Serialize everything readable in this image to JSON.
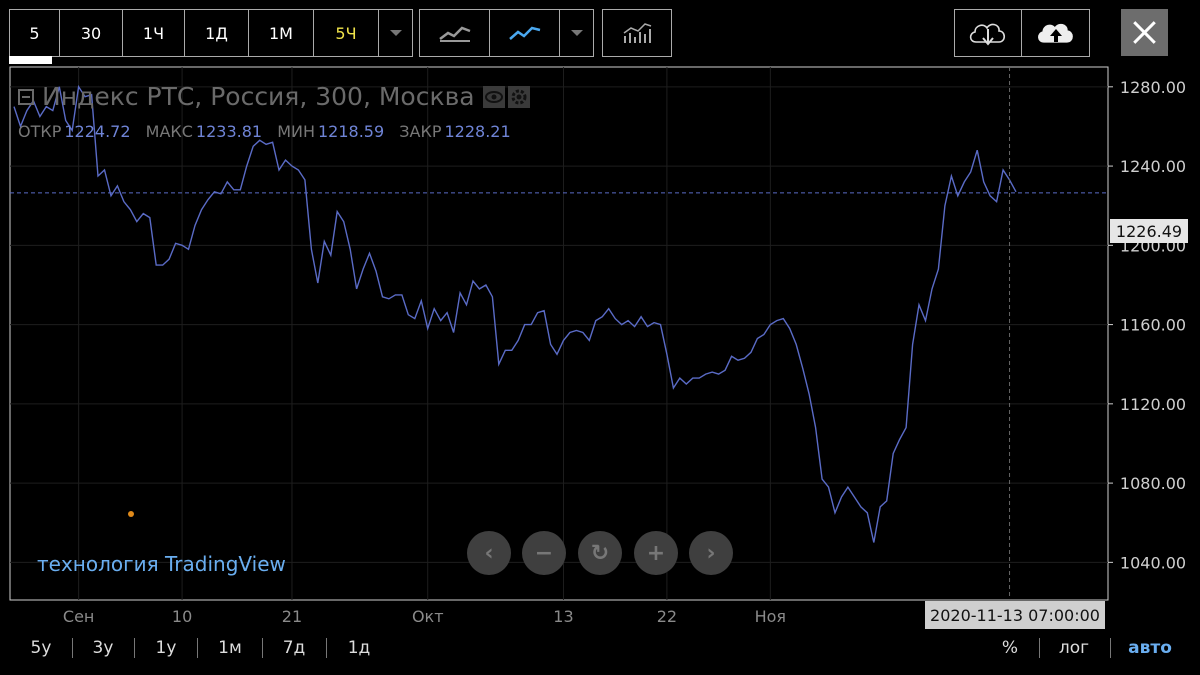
{
  "toolbar": {
    "intervals": [
      "5",
      "30",
      "1Ч",
      "1Д",
      "1М",
      "5Ч"
    ],
    "active_interval": "5Ч"
  },
  "legend": {
    "title": "Индекс РТС, Россия, 300, Москва",
    "ohlc": [
      {
        "key": "ОТКР",
        "value": "1224.72"
      },
      {
        "key": "МАКС",
        "value": "1233.81"
      },
      {
        "key": "МИН",
        "value": "1218.59"
      },
      {
        "key": "ЗАКР",
        "value": "1228.21"
      }
    ]
  },
  "watermark": "технология TradingView",
  "crosshair": {
    "date_label": "2020-11-13 07:00:00",
    "price_label": "1226.49",
    "price": 1226.49
  },
  "ranges": [
    "5y",
    "3y",
    "1y",
    "1м",
    "7д",
    "1д"
  ],
  "scale_options": [
    "%",
    "лог",
    "авто"
  ],
  "colors": {
    "line": "#5a6bc6",
    "background": "#000000",
    "grid": "#1e1e1e",
    "active": "#f0e34a",
    "auto": "#6aaef0"
  },
  "chart_data": {
    "type": "line",
    "x_tick_labels": [
      "Сен",
      "10",
      "21",
      "Окт",
      "13",
      "22",
      "Ноя"
    ],
    "y_tick_labels": [
      "1280.00",
      "1240.00",
      "1200.00",
      "1160.00",
      "1120.00",
      "1080.00",
      "1040.00"
    ],
    "y_ticks": [
      1280,
      1240,
      1200,
      1160,
      1120,
      1080,
      1040
    ],
    "ylim": [
      1021,
      1290
    ],
    "series": [
      {
        "values": [
          1270,
          1260,
          1268,
          1273,
          1265,
          1270,
          1268,
          1280,
          1263,
          1258,
          1280,
          1275,
          1276,
          1235,
          1238,
          1225,
          1230,
          1222,
          1218,
          1212,
          1216,
          1214,
          1190,
          1190,
          1193,
          1201,
          1200,
          1198,
          1210,
          1218,
          1223,
          1227,
          1226,
          1232,
          1228,
          1228,
          1240,
          1250,
          1253,
          1251,
          1252,
          1238,
          1243,
          1240,
          1238,
          1233,
          1198,
          1181,
          1202,
          1195,
          1217,
          1212,
          1198,
          1178,
          1188,
          1196,
          1187,
          1174,
          1173,
          1175,
          1175,
          1165,
          1163,
          1172,
          1158,
          1168,
          1162,
          1166,
          1156,
          1176,
          1170,
          1182,
          1178,
          1180,
          1174,
          1140,
          1147,
          1147,
          1152,
          1160,
          1160,
          1166,
          1167,
          1150,
          1145,
          1152,
          1156,
          1157,
          1156,
          1152,
          1162,
          1164,
          1168,
          1163,
          1160,
          1162,
          1159,
          1164,
          1159,
          1161,
          1160,
          1145,
          1128,
          1133,
          1130,
          1133,
          1133,
          1135,
          1136,
          1135,
          1137,
          1144,
          1142,
          1143,
          1146,
          1153,
          1155,
          1160,
          1162,
          1163,
          1158,
          1150,
          1138,
          1125,
          1108,
          1082,
          1078,
          1065,
          1073,
          1078,
          1073,
          1068,
          1065,
          1050,
          1068,
          1071,
          1095,
          1102,
          1108,
          1150,
          1170,
          1162,
          1178,
          1188,
          1220,
          1235,
          1225,
          1232,
          1237,
          1248,
          1232,
          1225,
          1222,
          1238,
          1233,
          1227
        ]
      }
    ]
  }
}
